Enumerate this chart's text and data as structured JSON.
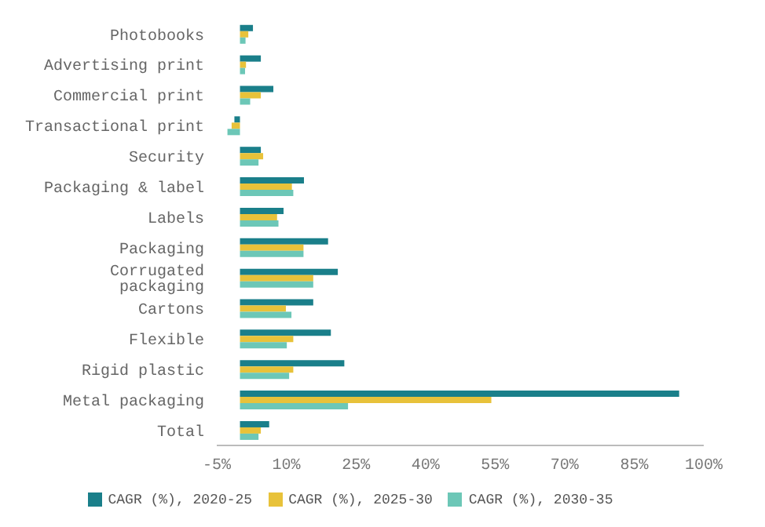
{
  "chart_data": {
    "type": "bar",
    "orientation": "horizontal",
    "categories": [
      "Photobooks",
      "Advertising print",
      "Commercial print",
      "Transactional print",
      "Security",
      "Packaging & label",
      "Labels",
      "Packaging",
      "Corrugated packaging",
      "Cartons",
      "Flexible",
      "Rigid plastic",
      "Metal packaging",
      "Total"
    ],
    "series": [
      {
        "name": "CAGR (%), 2020-25",
        "color": "#1a7f8a",
        "values": [
          2.8,
          4.5,
          7.2,
          -1.2,
          4.5,
          13.8,
          9.4,
          19.0,
          21.1,
          15.8,
          19.6,
          22.5,
          94.7,
          6.3
        ]
      },
      {
        "name": "CAGR (%), 2025-30",
        "color": "#e8c23a",
        "values": [
          1.8,
          1.3,
          4.5,
          -1.8,
          5.0,
          11.2,
          8.0,
          13.7,
          15.8,
          9.9,
          11.5,
          11.5,
          54.2,
          4.5
        ]
      },
      {
        "name": "CAGR (%), 2030-35",
        "color": "#6cc7b7",
        "values": [
          1.2,
          1.1,
          2.2,
          -2.7,
          4.0,
          11.5,
          8.3,
          13.7,
          15.8,
          11.1,
          10.1,
          10.6,
          23.3,
          4.0
        ]
      }
    ],
    "xlim": [
      -5,
      100
    ],
    "xticks": [
      {
        "value": -5,
        "label": "-5%"
      },
      {
        "value": 10,
        "label": "10%"
      },
      {
        "value": 25,
        "label": "25%"
      },
      {
        "value": 40,
        "label": "40%"
      },
      {
        "value": 55,
        "label": "55%"
      },
      {
        "value": 70,
        "label": "70%"
      },
      {
        "value": 85,
        "label": "85%"
      },
      {
        "value": 100,
        "label": "100%"
      }
    ],
    "legend": "bottom"
  }
}
